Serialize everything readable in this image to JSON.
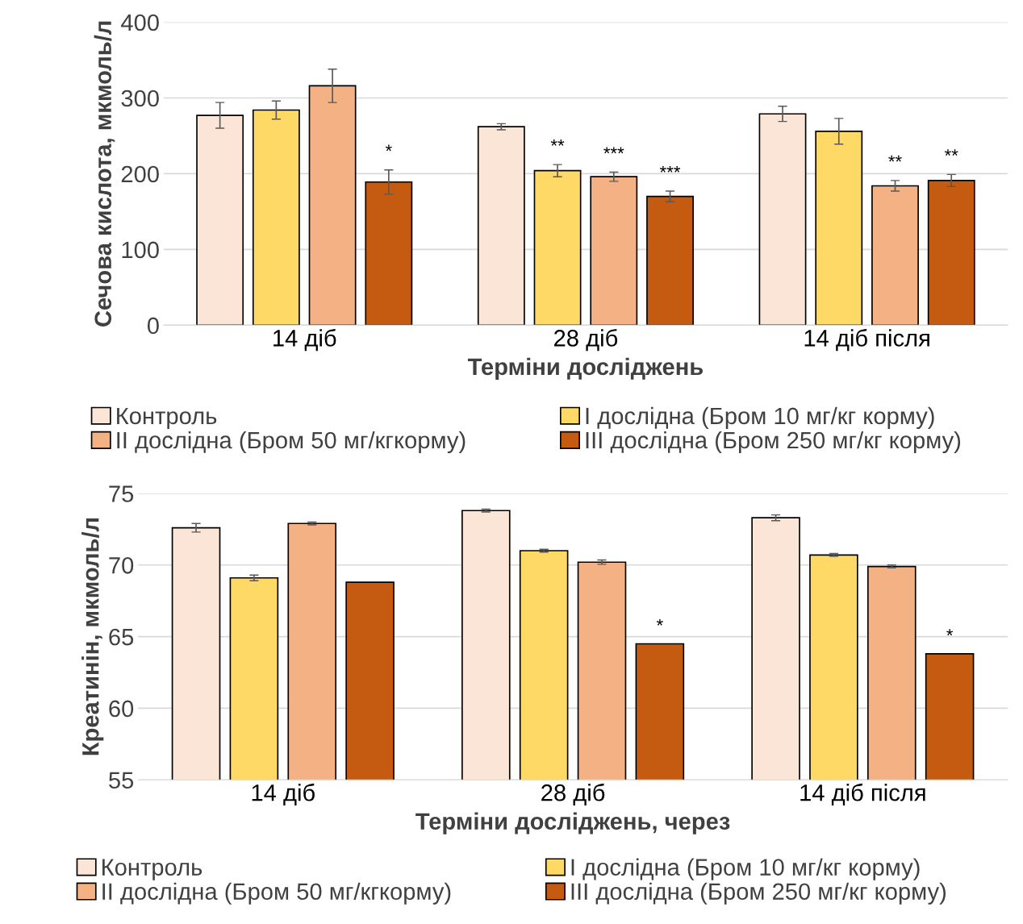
{
  "chart_data": [
    {
      "type": "bar",
      "ylabel": "Сечова кислота, мкмоль/л",
      "xlabel": "Терміни досліджень",
      "categories": [
        "14 діб",
        "28 діб",
        "14 діб після"
      ],
      "ylim": [
        0,
        400
      ],
      "yticks": [
        0,
        100,
        200,
        300,
        400
      ],
      "grid": "y",
      "legend": "bottom",
      "series": [
        {
          "name": "Контроль",
          "color": "#fbe5d6",
          "values": [
            277,
            262,
            279
          ],
          "errors": [
            17,
            4,
            10
          ]
        },
        {
          "name": "І дослідна (Бром 10 мг/кг корму)",
          "color": "#ffd966",
          "values": [
            284,
            204,
            256
          ],
          "errors": [
            12,
            8,
            17
          ],
          "value_labels": [
            null,
            "**",
            null
          ]
        },
        {
          "name": "ІІ дослідна (Бром 50 мг/кгкорму)",
          "color": "#f4b183",
          "values": [
            316,
            196,
            184
          ],
          "errors": [
            22,
            6,
            7
          ],
          "value_labels": [
            null,
            "***",
            "**"
          ]
        },
        {
          "name": "ІІІ дослідна (Бром 250 мг/кг корму)",
          "color": "#c55a11",
          "values": [
            189,
            170,
            191
          ],
          "errors": [
            16,
            7,
            8
          ],
          "value_labels": [
            "*",
            "***",
            "**"
          ]
        }
      ]
    },
    {
      "type": "bar",
      "ylabel": "Креатинін, мкмоль/л",
      "xlabel": "Терміни досліджень, через",
      "categories": [
        "14 діб",
        "28 діб",
        "14 діб після"
      ],
      "ylim": [
        55,
        75
      ],
      "yticks": [
        55,
        60,
        65,
        70,
        75
      ],
      "grid": "y",
      "legend": "bottom",
      "series": [
        {
          "name": "Контроль",
          "color": "#fbe5d6",
          "values": [
            72.6,
            73.8,
            73.3
          ],
          "errors": [
            0.3,
            0.1,
            0.2
          ]
        },
        {
          "name": "І дослідна (Бром 10 мг/кг корму)",
          "color": "#ffd966",
          "values": [
            69.1,
            71.0,
            70.7
          ],
          "errors": [
            0.2,
            0.1,
            0.1
          ]
        },
        {
          "name": "ІІ дослідна (Бром 50 мг/кгкорму)",
          "color": "#f4b183",
          "values": [
            72.9,
            70.2,
            69.9
          ],
          "errors": [
            0.1,
            0.15,
            0.1
          ]
        },
        {
          "name": "ІІІ дослідна (Бром 250 мг/кг корму)",
          "color": "#c55a11",
          "values": [
            68.8,
            64.5,
            63.8
          ],
          "value_labels": [
            null,
            "*",
            "*"
          ]
        }
      ]
    }
  ]
}
